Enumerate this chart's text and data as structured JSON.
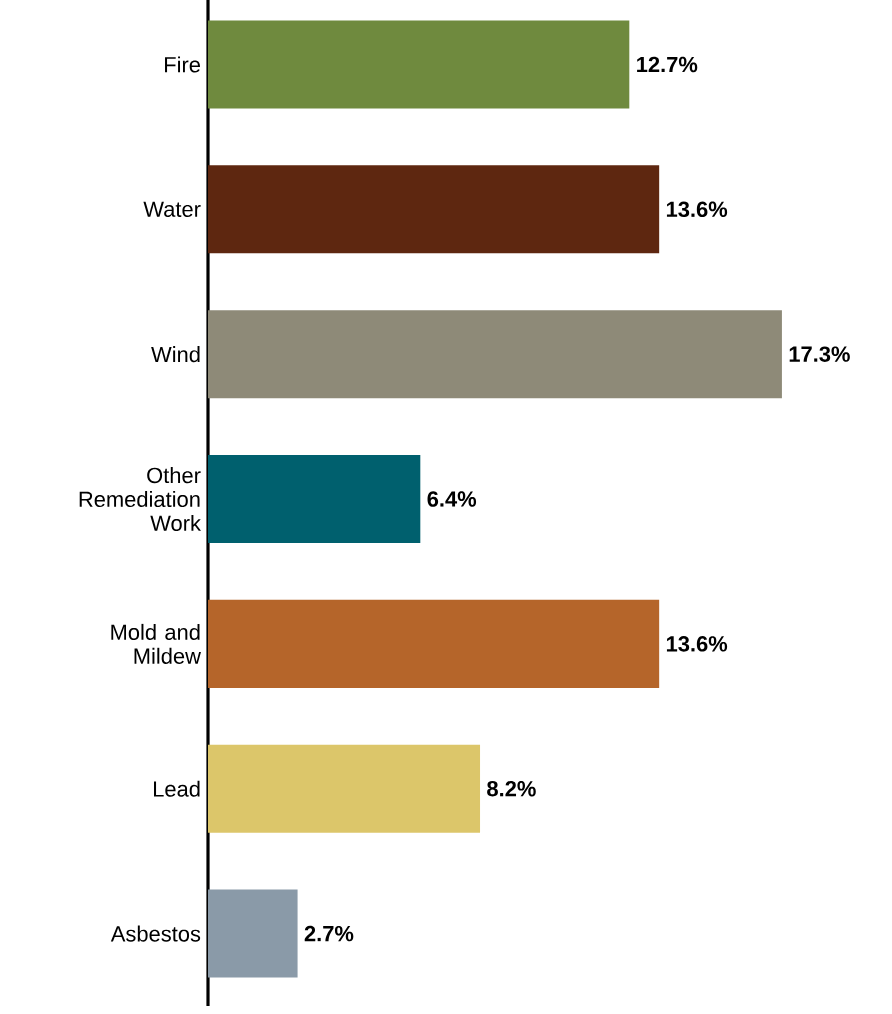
{
  "chart_data": {
    "type": "bar",
    "orientation": "horizontal",
    "categories": [
      "Fire",
      "Water",
      "Wind",
      "Other Remediation Work",
      "Mold and Mildew",
      "Lead",
      "Asbestos"
    ],
    "values": [
      12.7,
      13.6,
      17.3,
      6.4,
      13.6,
      8.2,
      2.7
    ],
    "value_labels": [
      "12.7%",
      "13.6%",
      "17.3%",
      "6.4%",
      "13.6%",
      "8.2%",
      "2.7%"
    ],
    "colors": [
      "#6f8a3e",
      "#5e2710",
      "#8e8a78",
      "#00606e",
      "#b5652a",
      "#dcc66a",
      "#8a9aa8"
    ],
    "tick_labels": "y"
  }
}
